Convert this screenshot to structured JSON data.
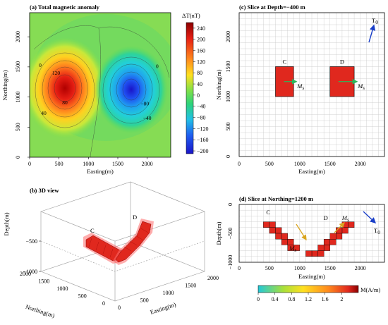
{
  "chart_data": [
    {
      "id": "a",
      "type": "heatmap",
      "title": "(a) Total magnetic anomaly",
      "xlabel": "Easting(m)",
      "ylabel": "Northing(m)",
      "xlim": [
        0,
        2400
      ],
      "ylim": [
        0,
        2400
      ],
      "xticks": [
        0,
        500,
        1000,
        1500,
        2000
      ],
      "yticks": [
        0,
        500,
        1000,
        1500,
        2000
      ],
      "anomalies": [
        {
          "x": 560,
          "y": 1180,
          "peak": 260
        },
        {
          "x": 1700,
          "y": 1150,
          "peak": -210
        }
      ],
      "contour_labels": [
        {
          "text": "0",
          "x": 180,
          "y": 1500
        },
        {
          "text": "120",
          "x": 450,
          "y": 1370
        },
        {
          "text": "80",
          "x": 600,
          "y": 880
        },
        {
          "text": "40",
          "x": 240,
          "y": 700
        },
        {
          "text": "0",
          "x": 2170,
          "y": 1480
        },
        {
          "text": "−80",
          "x": 1960,
          "y": 860
        },
        {
          "text": "−40",
          "x": 2000,
          "y": 620
        }
      ],
      "colorbar": {
        "label": "ΔT(nT)",
        "min": -210,
        "max": 260,
        "ticks": [
          240,
          200,
          160,
          120,
          80,
          40,
          0,
          -40,
          -80,
          -120,
          -160,
          -200
        ]
      }
    },
    {
      "id": "b",
      "type": "3d-voxels",
      "title": "(b) 3D view",
      "zlabel": "Depth(m)",
      "xlabel": "Easting(m)",
      "ylabel": "Northing(m)",
      "zticks": [
        -500,
        -1000
      ],
      "easting_ticks": [
        0,
        500,
        1000,
        1500,
        2000
      ],
      "northing_ticks": [
        0,
        500,
        1000,
        1500,
        2000
      ],
      "bodies": [
        "C",
        "D"
      ]
    },
    {
      "id": "c",
      "type": "grid-slice",
      "title": "(c) Slice at Depth=−400 m",
      "xlabel": "Easting(m)",
      "ylabel": "Northing(m)",
      "xlim": [
        0,
        2400
      ],
      "ylim": [
        0,
        2400
      ],
      "xticks": [
        0,
        500,
        1000,
        1500,
        2000
      ],
      "yticks": [
        0,
        500,
        1000,
        1500,
        2000
      ],
      "bodies": [
        {
          "label": "C",
          "x0": 600,
          "x1": 900,
          "y0": 1000,
          "y1": 1500,
          "mag_label": "M",
          "mag_sub": "s"
        },
        {
          "label": "D",
          "x0": 1500,
          "x1": 1900,
          "y0": 1000,
          "y1": 1500,
          "mag_label": "M",
          "mag_sub": "s"
        }
      ],
      "field_label": "T",
      "field_sub": "0"
    },
    {
      "id": "d",
      "type": "grid-slice",
      "title": "(d) Slice at Northing=1200 m",
      "xlabel": "Easting(m)",
      "ylabel": "Depth(m)",
      "xlim": [
        0,
        2400
      ],
      "ylim": [
        -1000,
        0
      ],
      "xticks": [
        0,
        500,
        1000,
        1500,
        2000
      ],
      "yticks": [
        0,
        -500,
        -1000
      ],
      "cells": [
        [
          400,
          -300
        ],
        [
          500,
          -300
        ],
        [
          500,
          -400
        ],
        [
          600,
          -400
        ],
        [
          600,
          -500
        ],
        [
          700,
          -500
        ],
        [
          700,
          -600
        ],
        [
          800,
          -600
        ],
        [
          800,
          -700
        ],
        [
          900,
          -700
        ],
        [
          1800,
          -300
        ],
        [
          1700,
          -300
        ],
        [
          1700,
          -400
        ],
        [
          1600,
          -400
        ],
        [
          1600,
          -500
        ],
        [
          1500,
          -500
        ],
        [
          1500,
          -600
        ],
        [
          1400,
          -600
        ],
        [
          1400,
          -700
        ],
        [
          1300,
          -700
        ],
        [
          1300,
          -800
        ],
        [
          1200,
          -800
        ],
        [
          1100,
          -800
        ]
      ],
      "body_labels": [
        {
          "text": "C",
          "x": 480,
          "y": -170
        },
        {
          "text": "D",
          "x": 1430,
          "y": -270
        }
      ],
      "mag_labels": [
        {
          "text": "M",
          "sub": "s",
          "x": 830,
          "y": -790
        },
        {
          "text": "M",
          "sub": "s",
          "x": 1700,
          "y": -270
        }
      ],
      "field_label": "T",
      "field_sub": "0"
    },
    {
      "id": "colorbar-m",
      "type": "colorbar",
      "label": "M(A/m)",
      "min": 0,
      "max": 2.4,
      "ticks": [
        "0",
        "0.4",
        "0.8",
        "1.2",
        "1.6",
        "2"
      ]
    }
  ],
  "colors": {
    "body_fill": "#e0281e",
    "body_edge": "#000000",
    "arrow_green": "#2bb55a",
    "arrow_orange": "#d9a520",
    "field_blue": "#1a3fc8",
    "grid": "#c8c8c8"
  }
}
